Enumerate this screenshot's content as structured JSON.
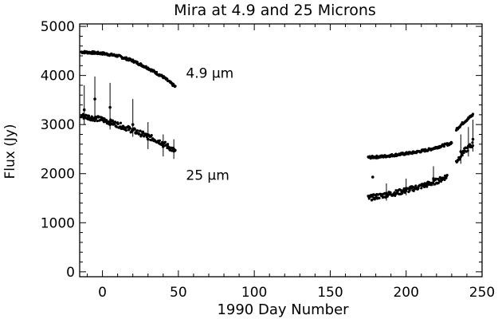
{
  "chart_data": {
    "type": "scatter",
    "title": "Mira at 4.9 and 25 Microns",
    "xlabel": "1990 Day Number",
    "ylabel": "Flux (Jy)",
    "xlim": [
      -15,
      250
    ],
    "ylim": [
      -100,
      5050
    ],
    "x_ticks": [
      0,
      50,
      100,
      150,
      200,
      250
    ],
    "x_tick_labels": [
      "0",
      "50",
      "100",
      "150",
      "200",
      "250"
    ],
    "y_ticks": [
      0,
      1000,
      2000,
      3000,
      4000,
      5000
    ],
    "y_tick_labels": [
      "0",
      "1000",
      "2000",
      "3000",
      "4000",
      "5000"
    ],
    "grid": false,
    "series": [
      {
        "name": "4.9 μm",
        "label_text": "4.9 μm",
        "label_position": [
          55,
          3950
        ],
        "segments": [
          {
            "x_range": [
              -14,
              48
            ],
            "points": [
              [
                -14,
                4480
              ],
              [
                0,
                4450
              ],
              [
                10,
                4400
              ],
              [
                20,
                4300
              ],
              [
                30,
                4150
              ],
              [
                40,
                3970
              ],
              [
                48,
                3770
              ]
            ]
          },
          {
            "x_range": [
              175,
              230
            ],
            "points": [
              [
                175,
                2330
              ],
              [
                185,
                2350
              ],
              [
                195,
                2390
              ],
              [
                205,
                2430
              ],
              [
                215,
                2490
              ],
              [
                225,
                2580
              ],
              [
                230,
                2620
              ]
            ]
          },
          {
            "x_range": [
              233,
              244
            ],
            "points": [
              [
                233,
                2900
              ],
              [
                238,
                3050
              ],
              [
                244,
                3200
              ]
            ]
          }
        ],
        "isolated_points": [
          [
            178,
            1930
          ]
        ]
      },
      {
        "name": "25 μm",
        "label_text": "25 μm",
        "label_position": [
          55,
          1870
        ],
        "segments": [
          {
            "x_range": [
              -14,
              48
            ],
            "points": [
              [
                -14,
                3180
              ],
              [
                0,
                3100
              ],
              [
                10,
                3000
              ],
              [
                20,
                2880
              ],
              [
                30,
                2760
              ],
              [
                40,
                2620
              ],
              [
                48,
                2450
              ]
            ]
          },
          {
            "x_range": [
              175,
              227
            ],
            "points": [
              [
                175,
                1500
              ],
              [
                185,
                1560
              ],
              [
                195,
                1620
              ],
              [
                205,
                1700
              ],
              [
                215,
                1790
              ],
              [
                222,
                1870
              ],
              [
                227,
                1950
              ]
            ]
          },
          {
            "x_range": [
              233,
              244
            ],
            "points": [
              [
                233,
                2250
              ],
              [
                238,
                2450
              ],
              [
                244,
                2600
              ]
            ]
          }
        ],
        "error_bars": [
          [
            -12,
            3300,
            3800,
            3000
          ],
          [
            -5,
            3520,
            3980,
            3050
          ],
          [
            5,
            3350,
            3850,
            2900
          ],
          [
            20,
            3000,
            3520,
            2750
          ],
          [
            30,
            2700,
            3050,
            2500
          ],
          [
            40,
            2550,
            2800,
            2350
          ],
          [
            47,
            2500,
            2700,
            2300
          ],
          [
            187,
            1600,
            1800,
            1450
          ],
          [
            200,
            1700,
            1900,
            1560
          ],
          [
            218,
            1900,
            2150,
            1750
          ],
          [
            236,
            2450,
            2800,
            2200
          ],
          [
            241,
            2550,
            2950,
            2350
          ],
          [
            244,
            2700,
            3100,
            2450
          ]
        ]
      }
    ]
  }
}
